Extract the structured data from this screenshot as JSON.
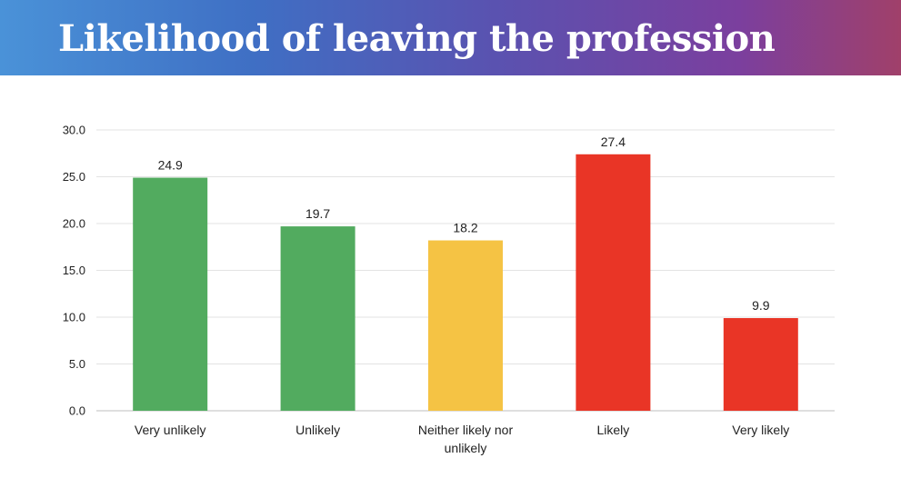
{
  "banner": {
    "title": "Likelihood of leaving the profession"
  },
  "chart_data": {
    "type": "bar",
    "categories": [
      "Very unlikely",
      "Unlikely",
      "Neither likely nor unlikely",
      "Likely",
      "Very likely"
    ],
    "category_lines": [
      [
        "Very unlikely"
      ],
      [
        "Unlikely"
      ],
      [
        "Neither likely nor",
        "unlikely"
      ],
      [
        "Likely"
      ],
      [
        "Very likely"
      ]
    ],
    "values": [
      24.9,
      19.7,
      18.2,
      27.4,
      9.9
    ],
    "value_labels": [
      "24.9",
      "19.7",
      "18.2",
      "27.4",
      "9.9"
    ],
    "bar_colors": [
      "#52ab5f",
      "#52ab5f",
      "#f5c344",
      "#e93526",
      "#e93526"
    ],
    "ylim": [
      0,
      30
    ],
    "yticks": [
      "0.0",
      "5.0",
      "10.0",
      "15.0",
      "20.0",
      "25.0",
      "30.0"
    ],
    "xlabel": "",
    "ylabel": "",
    "grid": true
  }
}
